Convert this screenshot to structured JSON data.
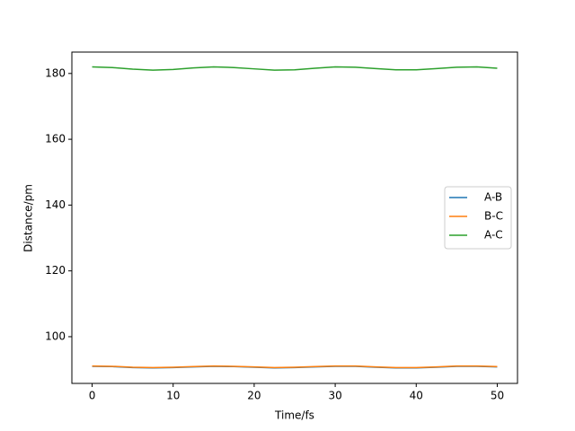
{
  "chart_data": {
    "type": "line",
    "xlabel": "Time/fs",
    "ylabel": "Distance/pm",
    "x": [
      0,
      2.5,
      5,
      7.5,
      10,
      12.5,
      15,
      17.5,
      20,
      22.5,
      25,
      27.5,
      30,
      32.5,
      35,
      37.5,
      40,
      42.5,
      45,
      47.5,
      50
    ],
    "series": [
      {
        "name": "A-B",
        "color": "#1f77b4",
        "values": [
          91.0,
          90.9,
          90.6,
          90.5,
          90.6,
          90.8,
          91.0,
          90.9,
          90.7,
          90.5,
          90.6,
          90.8,
          91.0,
          91.0,
          90.7,
          90.5,
          90.5,
          90.7,
          91.0,
          91.0,
          90.8
        ]
      },
      {
        "name": "B-C",
        "color": "#ff7f0e",
        "values": [
          91.1,
          91.0,
          90.7,
          90.6,
          90.7,
          90.9,
          91.1,
          91.0,
          90.8,
          90.6,
          90.7,
          90.9,
          91.1,
          91.1,
          90.8,
          90.6,
          90.6,
          90.8,
          91.1,
          91.1,
          90.9
        ]
      },
      {
        "name": "A-C",
        "color": "#2ca02c",
        "values": [
          182.0,
          181.8,
          181.3,
          181.0,
          181.2,
          181.7,
          182.0,
          181.8,
          181.4,
          181.0,
          181.1,
          181.6,
          182.0,
          181.9,
          181.5,
          181.1,
          181.1,
          181.5,
          181.9,
          182.0,
          181.6
        ]
      }
    ],
    "xlim": [
      -2.5,
      52.5
    ],
    "xticks": [
      0,
      10,
      20,
      30,
      40,
      50
    ],
    "ylim": [
      85.8,
      186.5
    ],
    "yticks": [
      100,
      120,
      140,
      160,
      180
    ],
    "legend": "right"
  }
}
